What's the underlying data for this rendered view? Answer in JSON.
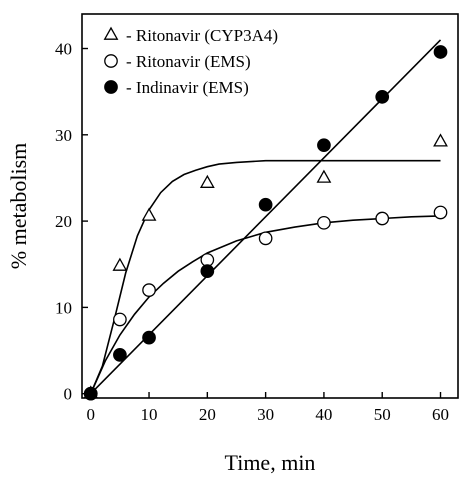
{
  "chart_data": {
    "type": "scatter",
    "xlabel": "Time, min",
    "ylabel": "% metabolism",
    "xlim": [
      -1.5,
      63
    ],
    "ylim": [
      -0.5,
      44
    ],
    "xticks": [
      0,
      10,
      20,
      30,
      40,
      50,
      60
    ],
    "yticks": [
      0,
      10,
      20,
      30,
      40
    ],
    "grid": false,
    "legend_position": "top-left",
    "series": [
      {
        "name": "Ritonavir (CYP3A4)",
        "legend_label": "- Ritonavir (CYP3A4)",
        "marker": "triangle-open",
        "x": [
          0,
          5,
          10,
          20,
          40,
          60
        ],
        "y": [
          0,
          14.8,
          20.6,
          24.4,
          25.0,
          29.2
        ],
        "fit_x": [
          0,
          2,
          4,
          6,
          8,
          10,
          12,
          14,
          16,
          18,
          20,
          22,
          25,
          30,
          35,
          40,
          45,
          50,
          55,
          60
        ],
        "fit_y": [
          0,
          3.2,
          8.5,
          14.0,
          18.3,
          21.3,
          23.3,
          24.6,
          25.4,
          25.9,
          26.3,
          26.6,
          26.8,
          27.0,
          27.0,
          27.0,
          27.0,
          27.0,
          27.0,
          27.0
        ]
      },
      {
        "name": "Ritonavir (EMS)",
        "legend_label": "- Ritonavir (EMS)",
        "marker": "circle-open",
        "x": [
          0,
          5,
          10,
          20,
          30,
          40,
          50,
          60
        ],
        "y": [
          0,
          8.6,
          12.0,
          15.5,
          18.0,
          19.8,
          20.3,
          21.0
        ],
        "fit_x": [
          0,
          2.5,
          5,
          7.5,
          10,
          12.5,
          15,
          17.5,
          20,
          25,
          30,
          35,
          40,
          45,
          50,
          55,
          60
        ],
        "fit_y": [
          0,
          3.8,
          6.8,
          9.2,
          11.2,
          12.8,
          14.2,
          15.3,
          16.3,
          17.7,
          18.7,
          19.3,
          19.8,
          20.1,
          20.3,
          20.5,
          20.6
        ]
      },
      {
        "name": "Indinavir (EMS)",
        "legend_label": "- Indinavir (EMS)",
        "marker": "circle-filled",
        "x": [
          0,
          5,
          10,
          20,
          30,
          40,
          50,
          60
        ],
        "y": [
          0,
          4.5,
          6.5,
          14.2,
          21.9,
          28.8,
          34.4,
          39.6
        ],
        "fit_x": [
          0,
          60
        ],
        "fit_y": [
          0,
          41
        ]
      }
    ]
  }
}
